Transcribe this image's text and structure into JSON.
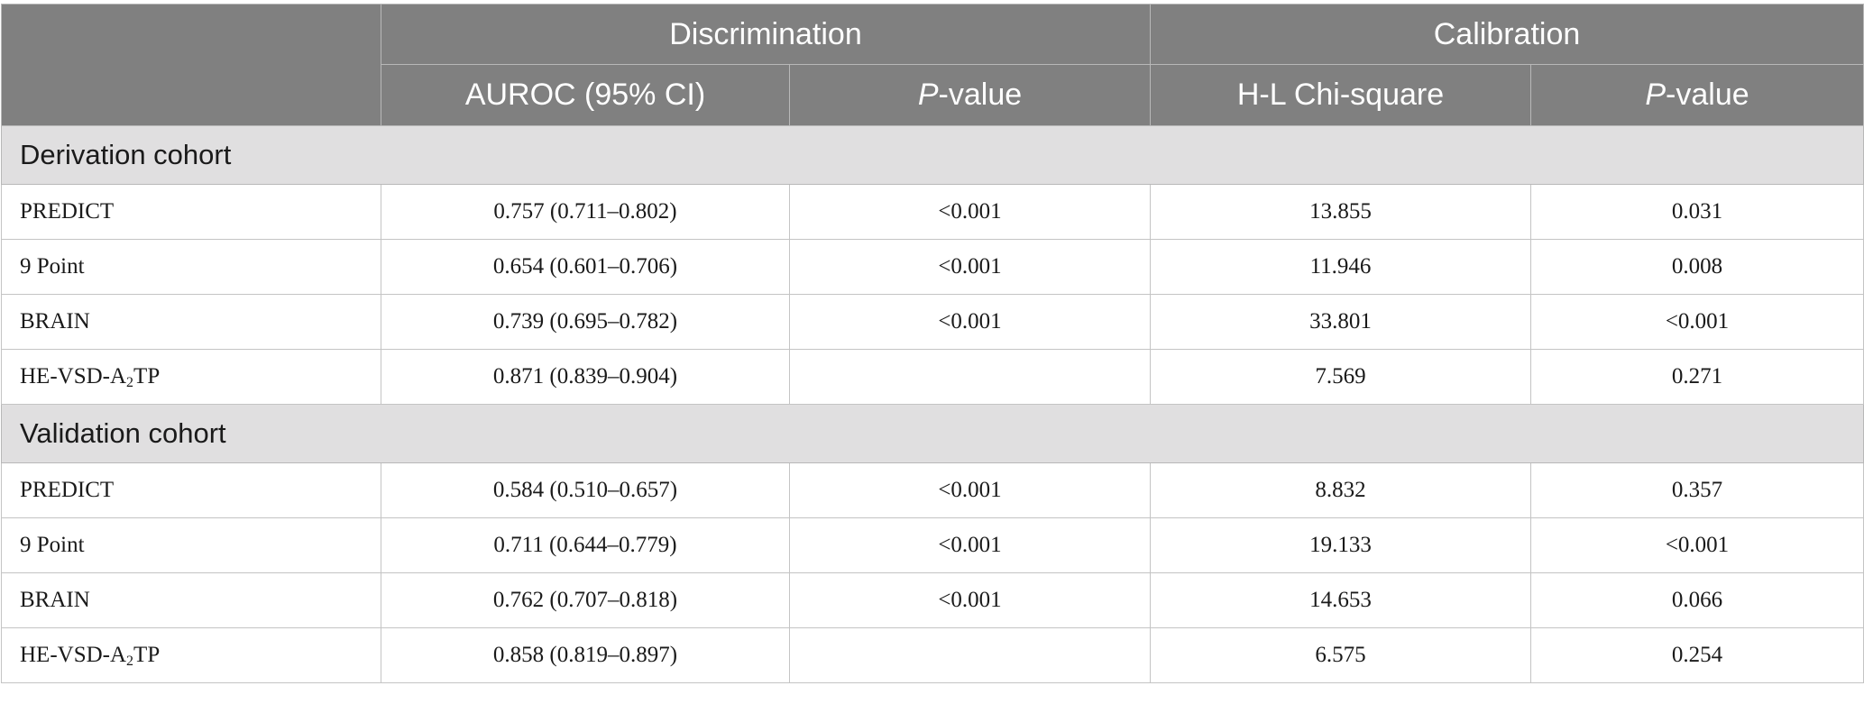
{
  "header": {
    "group_discrimination": "Discrimination",
    "group_calibration": "Calibration",
    "col_auroc": "AUROC (95% CI)",
    "col_p_italic": "P",
    "col_p_rest": "-value",
    "col_hl": "H-L Chi-square",
    "col_p2_italic": "P",
    "col_p2_rest": "-value"
  },
  "sections": [
    {
      "title": "Derivation cohort",
      "rows": [
        {
          "model": "PREDICT",
          "auroc": "0.757 (0.711–0.802)",
          "p": "<0.001",
          "hl": "13.855",
          "p_cal": "0.031"
        },
        {
          "model": "9 Point",
          "auroc": "0.654 (0.601–0.706)",
          "p": "<0.001",
          "hl": "11.946",
          "p_cal": "0.008"
        },
        {
          "model": "BRAIN",
          "auroc": "0.739 (0.695–0.782)",
          "p": "<0.001",
          "hl": "33.801",
          "p_cal": "<0.001"
        },
        {
          "model_pre": "HE-VSD-A",
          "model_sub": "2",
          "model_post": "TP",
          "auroc": "0.871 (0.839–0.904)",
          "p": "",
          "hl": "7.569",
          "p_cal": "0.271"
        }
      ]
    },
    {
      "title": "Validation cohort",
      "rows": [
        {
          "model": "PREDICT",
          "auroc": "0.584 (0.510–0.657)",
          "p": "<0.001",
          "hl": "8.832",
          "p_cal": "0.357"
        },
        {
          "model": "9 Point",
          "auroc": "0.711 (0.644–0.779)",
          "p": "<0.001",
          "hl": "19.133",
          "p_cal": "<0.001"
        },
        {
          "model": "BRAIN",
          "auroc": "0.762 (0.707–0.818)",
          "p": "<0.001",
          "hl": "14.653",
          "p_cal": "0.066"
        },
        {
          "model_pre": "HE-VSD-A",
          "model_sub": "2",
          "model_post": "TP",
          "auroc": "0.858 (0.819–0.897)",
          "p": "",
          "hl": "6.575",
          "p_cal": "0.254"
        }
      ]
    }
  ]
}
